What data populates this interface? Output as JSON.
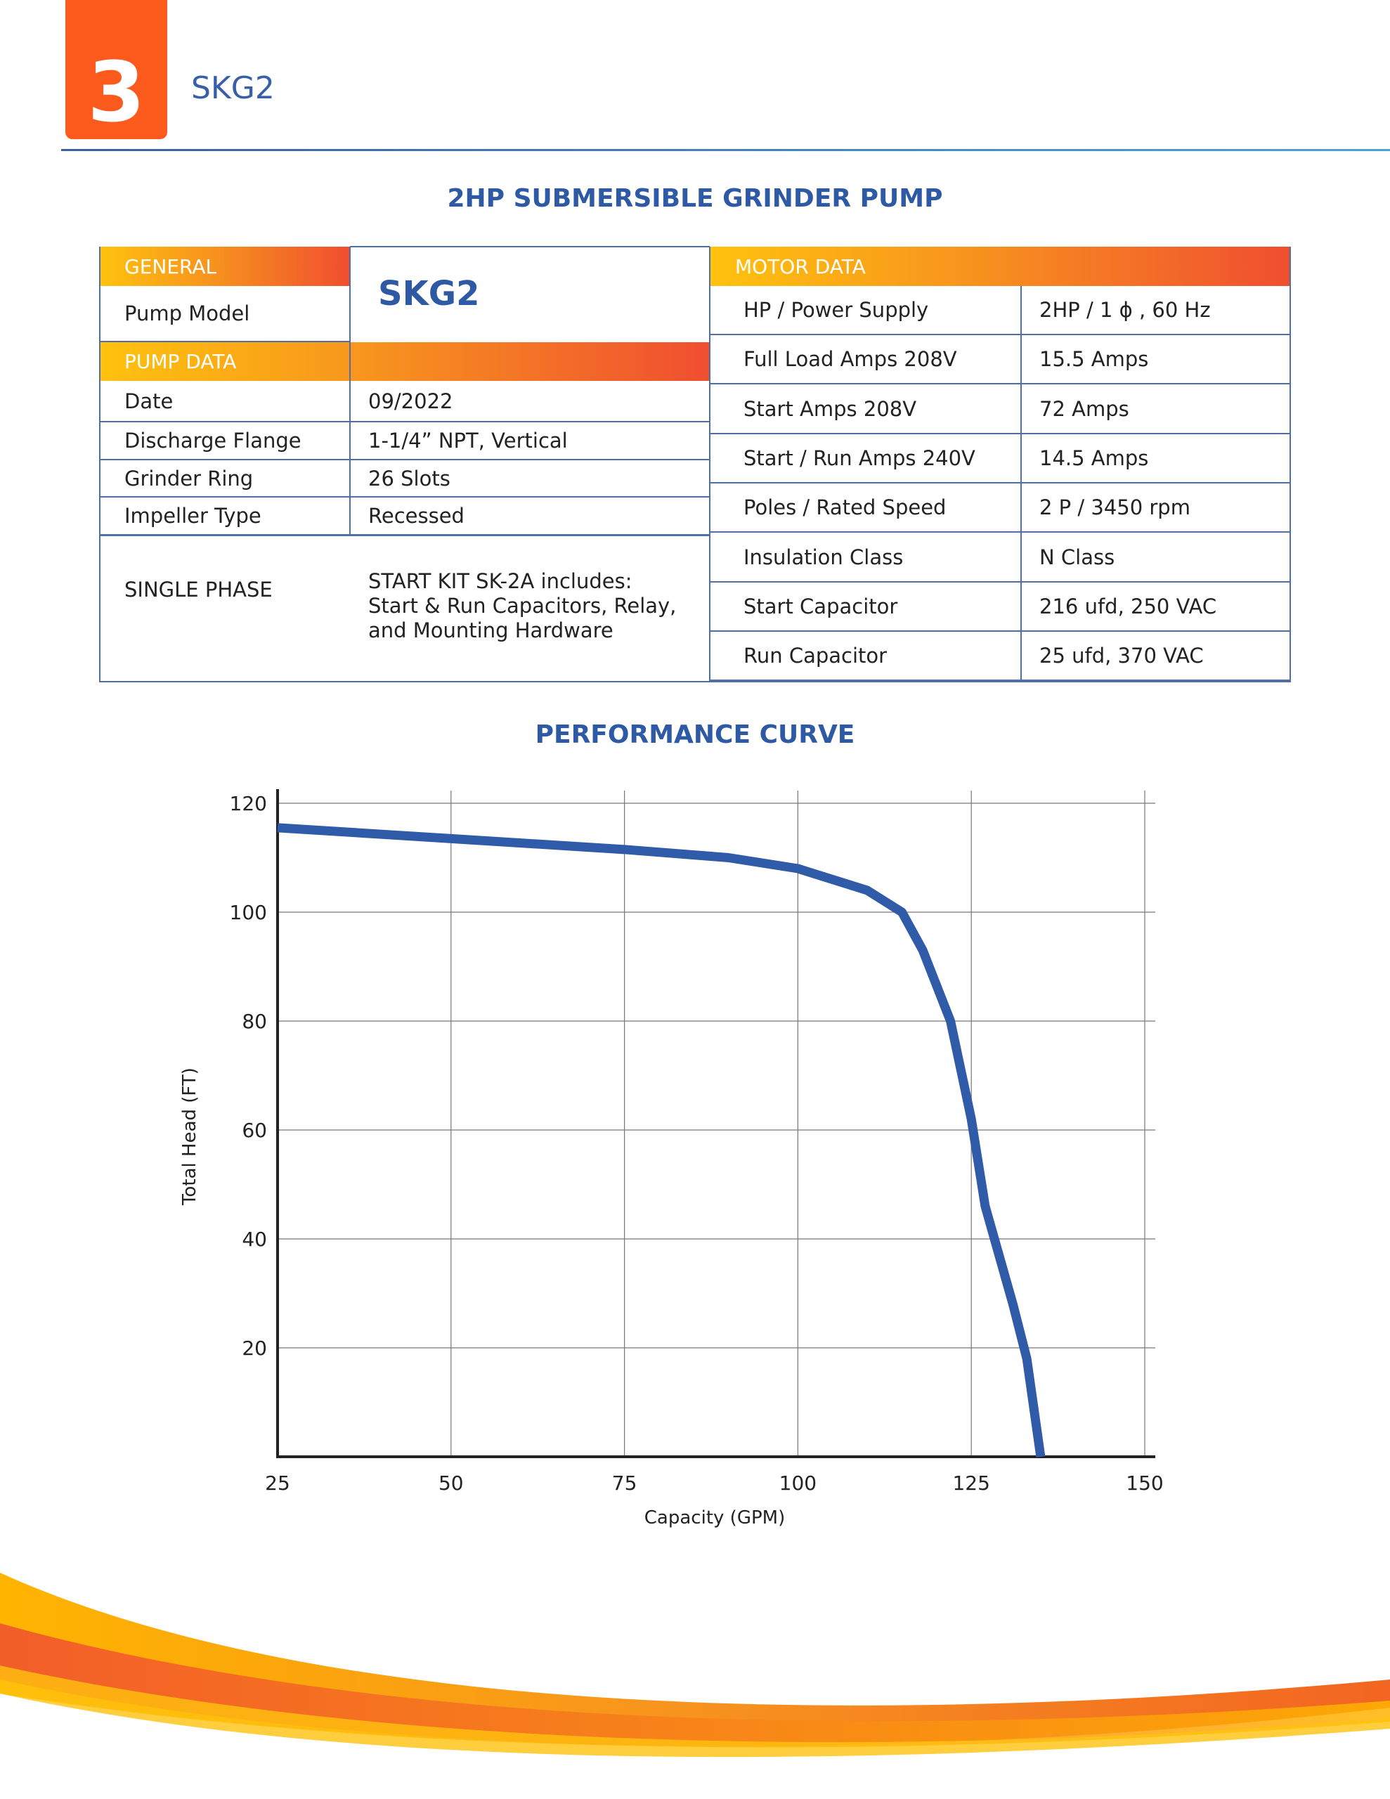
{
  "header": {
    "section_number": "3",
    "model": "SKG2"
  },
  "title": "2HP SUBMERSIBLE GRINDER PUMP",
  "general": {
    "heading": "GENERAL",
    "pump_model_label": "Pump Model",
    "pump_model_value": "SKG2"
  },
  "pump_data": {
    "heading": "PUMP DATA",
    "rows": [
      {
        "label": "Date",
        "value": "09/2022"
      },
      {
        "label": "Discharge Flange",
        "value": "1-1/4” NPT, Vertical"
      },
      {
        "label": "Grinder Ring",
        "value": "26 Slots"
      },
      {
        "label": "Impeller Type",
        "value": "Recessed"
      }
    ],
    "single_phase_label": "SINGLE PHASE",
    "single_phase_lines": [
      "START KIT SK-2A includes:",
      "Start & Run Capacitors, Relay,",
      "and Mounting Hardware"
    ]
  },
  "motor_data": {
    "heading": "MOTOR DATA",
    "rows": [
      {
        "label": "HP / Power Supply",
        "value": "2HP / 1 ϕ , 60 Hz"
      },
      {
        "label": "Full Load Amps 208V",
        "value": "15.5 Amps"
      },
      {
        "label": "Start Amps 208V",
        "value": "72 Amps"
      },
      {
        "label": "Start / Run Amps 240V",
        "value": "14.5 Amps"
      },
      {
        "label": "Poles / Rated Speed",
        "value": "2 P / 3450 rpm"
      },
      {
        "label": "Insulation Class",
        "value": "N Class"
      },
      {
        "label": "Start Capacitor",
        "value": "216 ufd, 250 VAC"
      },
      {
        "label": "Run Capacitor",
        "value": "25 ufd, 370 VAC"
      }
    ]
  },
  "chart_data": {
    "type": "line",
    "title": "PERFORMANCE CURVE",
    "xlabel": "Capacity (GPM)",
    "ylabel": "Total Head (FT)",
    "xlim": [
      25,
      150
    ],
    "ylim": [
      0,
      120
    ],
    "xticks": [
      25,
      50,
      75,
      100,
      125,
      150
    ],
    "yticks": [
      20,
      40,
      60,
      80,
      100,
      120
    ],
    "grid": true,
    "series": [
      {
        "name": "SKG2",
        "color": "#2f5ba8",
        "x": [
          25,
          50,
          75,
          90,
          100,
          110,
          115,
          118,
          122,
          125,
          127,
          131,
          133,
          135
        ],
        "y": [
          115.5,
          113.5,
          111.5,
          110,
          108,
          104,
          100,
          93,
          80,
          62,
          46,
          28,
          18,
          0
        ]
      }
    ]
  }
}
